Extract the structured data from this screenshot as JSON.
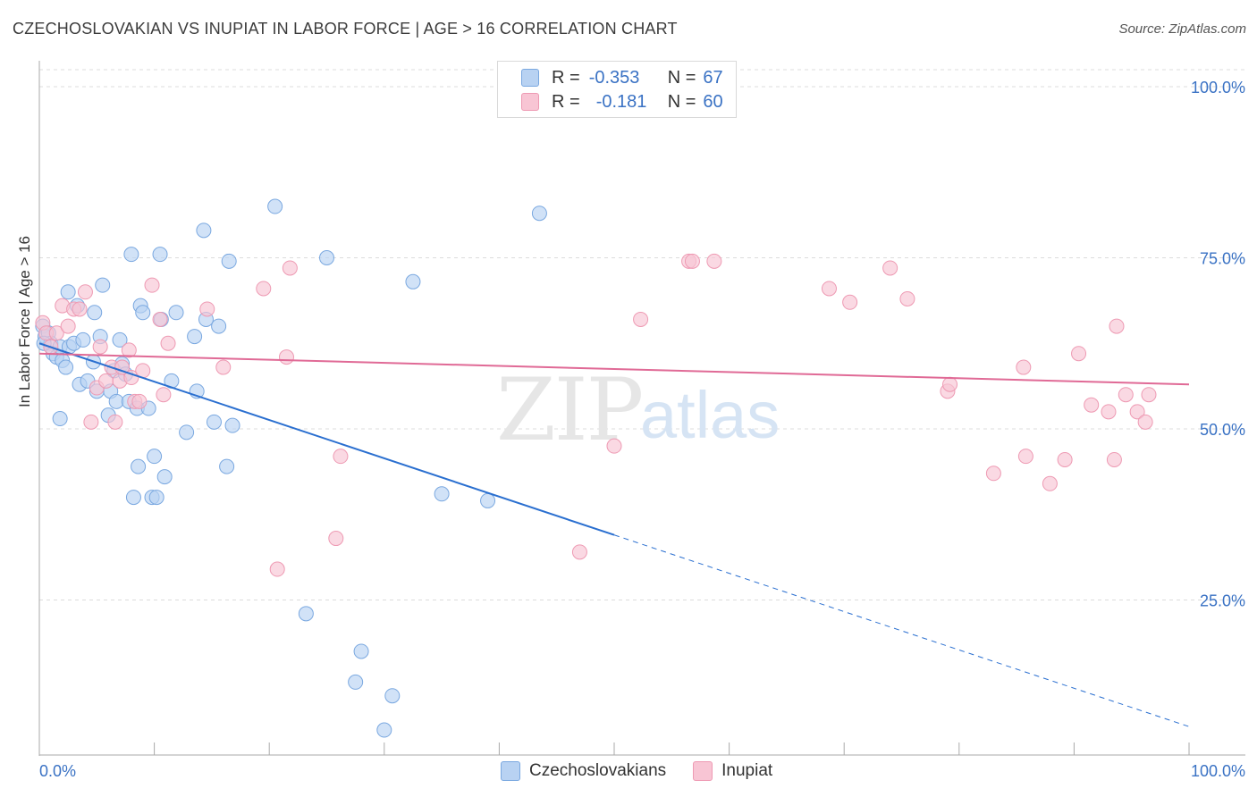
{
  "title": "CZECHOSLOVAKIAN VS INUPIAT IN LABOR FORCE | AGE > 16 CORRELATION CHART",
  "source": "Source: ZipAtlas.com",
  "watermark": {
    "zip": "ZIP",
    "atlas": "atlas"
  },
  "legend": {
    "rows": [
      {
        "r_label": "R =",
        "r_value": "-0.353",
        "n_label": "N =",
        "n_value": "67"
      },
      {
        "r_label": "R =",
        "r_value": "-0.181",
        "n_label": "N =",
        "n_value": "60"
      }
    ]
  },
  "bottom_legend": [
    "Czechoslovakians",
    "Inupiat"
  ],
  "colors": {
    "blue_fill": "#b8d2f2",
    "blue_stroke": "#7aa8e0",
    "blue_line": "#2a6fd0",
    "pink_fill": "#f8c5d4",
    "pink_stroke": "#ee9ab3",
    "pink_line": "#e06a96",
    "axis_text": "#3a72c4",
    "grid": "#dcdcdc"
  },
  "chart_data": {
    "type": "scatter",
    "title": "CZECHOSLOVAKIAN VS INUPIAT IN LABOR FORCE | AGE > 16 CORRELATION CHART",
    "xlabel": "",
    "ylabel": "In Labor Force | Age > 16",
    "xlim": [
      0,
      100
    ],
    "ylim": [
      0,
      105
    ],
    "x_tick_labels": [
      "0.0%",
      "100.0%"
    ],
    "y_ticks": [
      25,
      50,
      75,
      100
    ],
    "y_tick_labels": [
      "25.0%",
      "50.0%",
      "75.0%",
      "100.0%"
    ],
    "series": [
      {
        "name": "Czechoslovakians",
        "r": -0.353,
        "n": 67,
        "trend": {
          "x0": 0,
          "y0": 62.5,
          "x1": 50,
          "y1": 34.5,
          "dash_x1": 100,
          "dash_y1": 6.5
        },
        "points": [
          [
            0.3,
            65
          ],
          [
            0.5,
            63.5
          ],
          [
            0.8,
            64
          ],
          [
            1,
            62.5
          ],
          [
            1.2,
            61
          ],
          [
            1.5,
            60.5
          ],
          [
            1.8,
            62
          ],
          [
            2,
            60
          ],
          [
            2.3,
            59
          ],
          [
            2.6,
            62
          ],
          [
            3,
            62.5
          ],
          [
            1.8,
            51.5
          ],
          [
            3.5,
            56.5
          ],
          [
            3.8,
            63
          ],
          [
            4.2,
            57
          ],
          [
            4.7,
            59.8
          ],
          [
            4.8,
            67
          ],
          [
            5,
            55.5
          ],
          [
            5.3,
            63.5
          ],
          [
            5.5,
            71
          ],
          [
            6,
            52
          ],
          [
            6.2,
            55.5
          ],
          [
            6.5,
            58.5
          ],
          [
            6.7,
            54
          ],
          [
            7,
            63
          ],
          [
            7.2,
            59.5
          ],
          [
            7.5,
            58
          ],
          [
            7.8,
            54
          ],
          [
            8,
            75.5
          ],
          [
            8.2,
            40
          ],
          [
            8.5,
            53
          ],
          [
            8.6,
            44.5
          ],
          [
            8.8,
            68
          ],
          [
            9,
            67
          ],
          [
            9.5,
            53
          ],
          [
            9.8,
            40
          ],
          [
            10,
            46
          ],
          [
            10.2,
            40
          ],
          [
            10.5,
            75.5
          ],
          [
            10.6,
            66
          ],
          [
            10.9,
            43
          ],
          [
            11.5,
            57
          ],
          [
            11.9,
            67
          ],
          [
            12.8,
            49.5
          ],
          [
            13.5,
            63.5
          ],
          [
            13.7,
            55.5
          ],
          [
            14.3,
            79
          ],
          [
            14.5,
            66
          ],
          [
            15.2,
            51
          ],
          [
            15.6,
            65
          ],
          [
            16.3,
            44.5
          ],
          [
            16.5,
            74.5
          ],
          [
            16.8,
            50.5
          ],
          [
            20.5,
            82.5
          ],
          [
            23.2,
            23
          ],
          [
            25,
            75
          ],
          [
            27.5,
            13
          ],
          [
            28,
            17.5
          ],
          [
            30,
            6
          ],
          [
            30.7,
            11
          ],
          [
            32.5,
            71.5
          ],
          [
            35,
            40.5
          ],
          [
            39,
            39.5
          ],
          [
            43.5,
            81.5
          ],
          [
            0.4,
            62.5
          ],
          [
            2.5,
            70
          ],
          [
            3.3,
            68
          ]
        ]
      },
      {
        "name": "Inupiat",
        "r": -0.181,
        "n": 60,
        "trend": {
          "x0": 0,
          "y0": 61,
          "x1": 100,
          "y1": 56.5
        },
        "points": [
          [
            0.3,
            65.5
          ],
          [
            0.6,
            64
          ],
          [
            1,
            62
          ],
          [
            1.5,
            64
          ],
          [
            2,
            68
          ],
          [
            2.5,
            65
          ],
          [
            3,
            67.5
          ],
          [
            3.5,
            67.5
          ],
          [
            4,
            70
          ],
          [
            4.5,
            51
          ],
          [
            5,
            56
          ],
          [
            5.3,
            62
          ],
          [
            5.8,
            57
          ],
          [
            6.3,
            59
          ],
          [
            6.6,
            51
          ],
          [
            7,
            57
          ],
          [
            7.2,
            59
          ],
          [
            7.8,
            61.5
          ],
          [
            8,
            57.5
          ],
          [
            8.3,
            54
          ],
          [
            8.7,
            54
          ],
          [
            9,
            58.5
          ],
          [
            9.8,
            71
          ],
          [
            10.5,
            66
          ],
          [
            10.8,
            55
          ],
          [
            11.2,
            62.5
          ],
          [
            14.6,
            67.5
          ],
          [
            16,
            59
          ],
          [
            19.5,
            70.5
          ],
          [
            21.5,
            60.5
          ],
          [
            21.8,
            73.5
          ],
          [
            25.8,
            34
          ],
          [
            26.2,
            46
          ],
          [
            20.7,
            29.5
          ],
          [
            47,
            32
          ],
          [
            50,
            47.5
          ],
          [
            52.3,
            66
          ],
          [
            56.5,
            74.5
          ],
          [
            56.8,
            74.5
          ],
          [
            58.7,
            74.5
          ],
          [
            68.7,
            70.5
          ],
          [
            70.5,
            68.5
          ],
          [
            74,
            73.5
          ],
          [
            75.5,
            69
          ],
          [
            79,
            55.5
          ],
          [
            79.2,
            56.5
          ],
          [
            83,
            43.5
          ],
          [
            85.6,
            59
          ],
          [
            85.8,
            46
          ],
          [
            87.9,
            42
          ],
          [
            89.2,
            45.5
          ],
          [
            90.4,
            61
          ],
          [
            91.5,
            53.5
          ],
          [
            93,
            52.5
          ],
          [
            93.5,
            45.5
          ],
          [
            93.7,
            65
          ],
          [
            94.5,
            55
          ],
          [
            95.5,
            52.5
          ],
          [
            96.2,
            51
          ],
          [
            96.5,
            55
          ]
        ]
      }
    ]
  }
}
